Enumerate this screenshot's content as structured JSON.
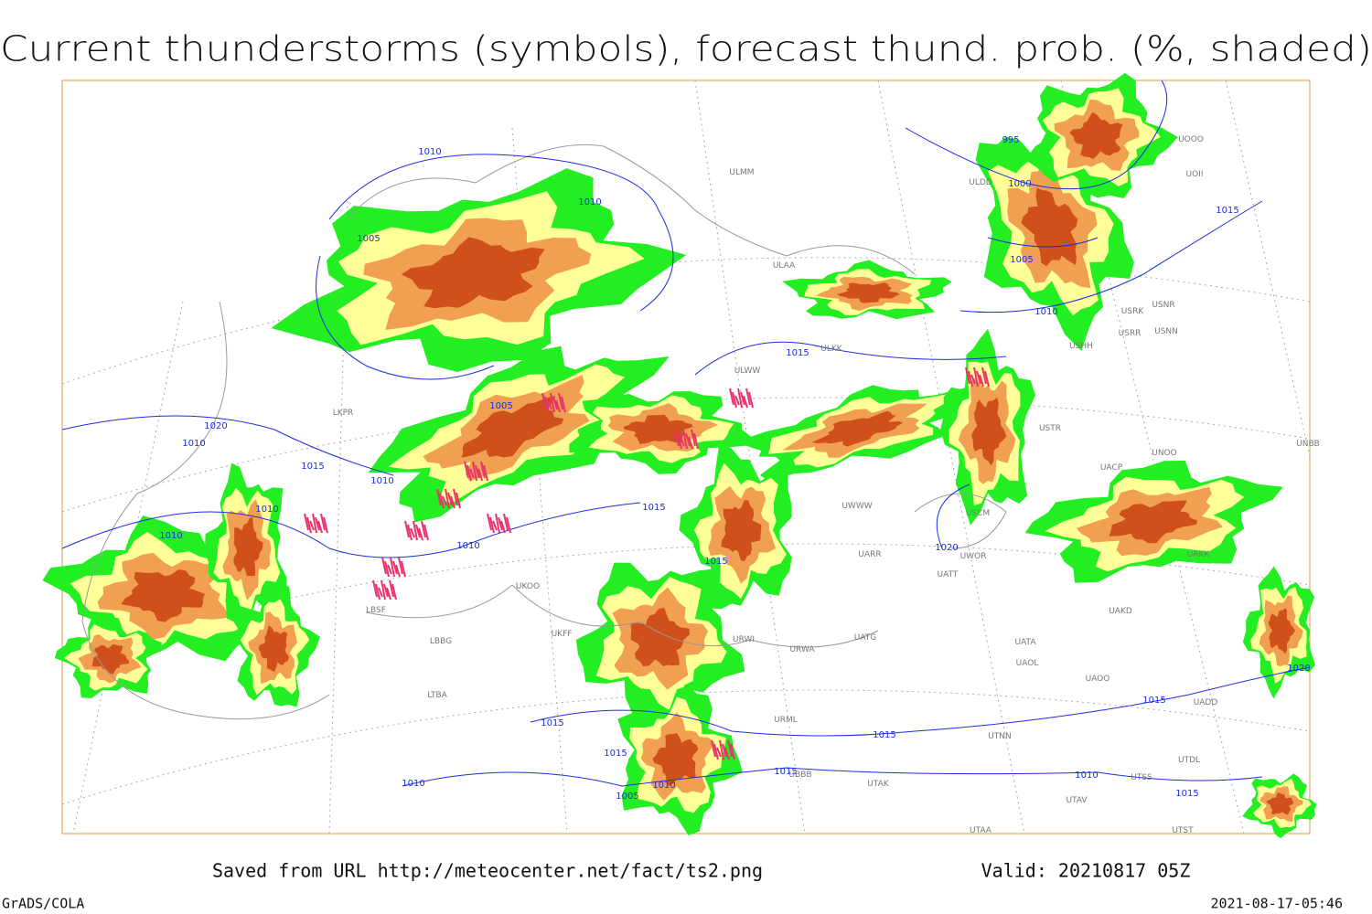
{
  "header": {
    "title": "Current thunderstorms (symbols), forecast thund. prob. (%, shaded)"
  },
  "map": {
    "isobar_labels": [
      "1010",
      "1010",
      "995",
      "1000",
      "1015",
      "1005",
      "1005",
      "1010",
      "1015",
      "1005",
      "1020",
      "1010",
      "1015",
      "1010",
      "1010",
      "1015",
      "1010",
      "1010",
      "1015",
      "1020",
      "1015",
      "1015",
      "1015",
      "1015",
      "1010",
      "1015",
      "1010",
      "1005",
      "1010",
      "1015",
      "1020"
    ],
    "station_labels": [
      "ULMM",
      "ULDD",
      "UOOO",
      "UOII",
      "ULAA",
      "USRK",
      "USNR",
      "USRR",
      "USNN",
      "USHH",
      "ULKK",
      "ULWW",
      "USTR",
      "UNOO",
      "UNBB",
      "UACP",
      "UWWW",
      "USCM",
      "UARR",
      "UWOR",
      "UATT",
      "UAKK",
      "UAKD",
      "UATA",
      "UAOL",
      "UAOO",
      "UATG",
      "UADD",
      "UTNN",
      "UTDL",
      "UTSS",
      "UTAV",
      "UTAA",
      "UTST",
      "UTAK",
      "UBBB",
      "URWA",
      "URML",
      "URWI",
      "LBSF",
      "LBBG",
      "LTBA",
      "UKOO",
      "UKFF",
      "LKPR"
    ]
  },
  "footer": {
    "source": "Saved from URL http://meteocenter.net/fact/ts2.png",
    "valid": "Valid: 20210817 05Z",
    "software": "GrADS/COLA",
    "timestamp": "2021-08-17-05:46"
  }
}
